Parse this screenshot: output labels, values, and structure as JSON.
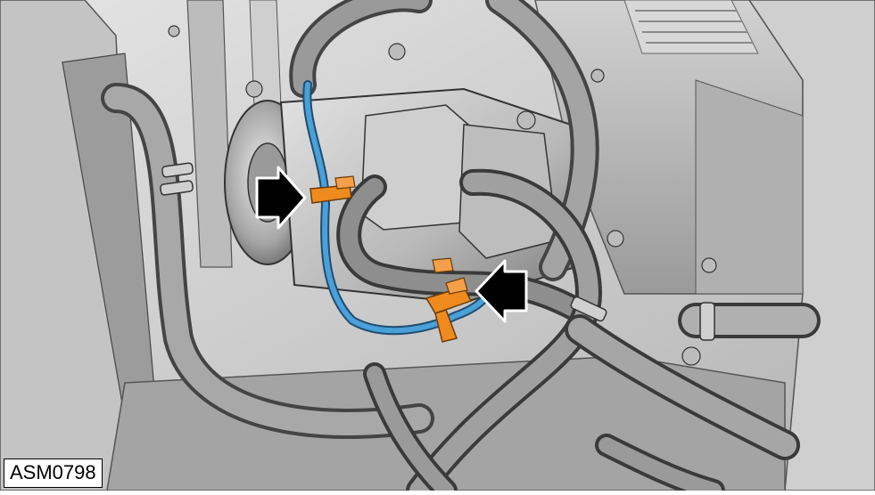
{
  "figure": {
    "id_label": "ASM0798",
    "callouts": [
      {
        "name": "callout-arrow-left",
        "direction": "right",
        "target": "wire-clip-upper"
      },
      {
        "name": "callout-arrow-right",
        "direction": "left",
        "target": "wire-clip-lower"
      }
    ],
    "colors": {
      "background": "#ffffff",
      "metal_light": "#d8d8d8",
      "metal_mid": "#a8a8a8",
      "metal_dark": "#5a5a5a",
      "hose": "#7a7a7a",
      "hose_highlight": "#cfcfcf",
      "wire_harness": "#4aa0d8",
      "wire_clip": "#ef8a1e",
      "arrow_fill": "#000000",
      "arrow_stroke": "#ffffff"
    }
  }
}
